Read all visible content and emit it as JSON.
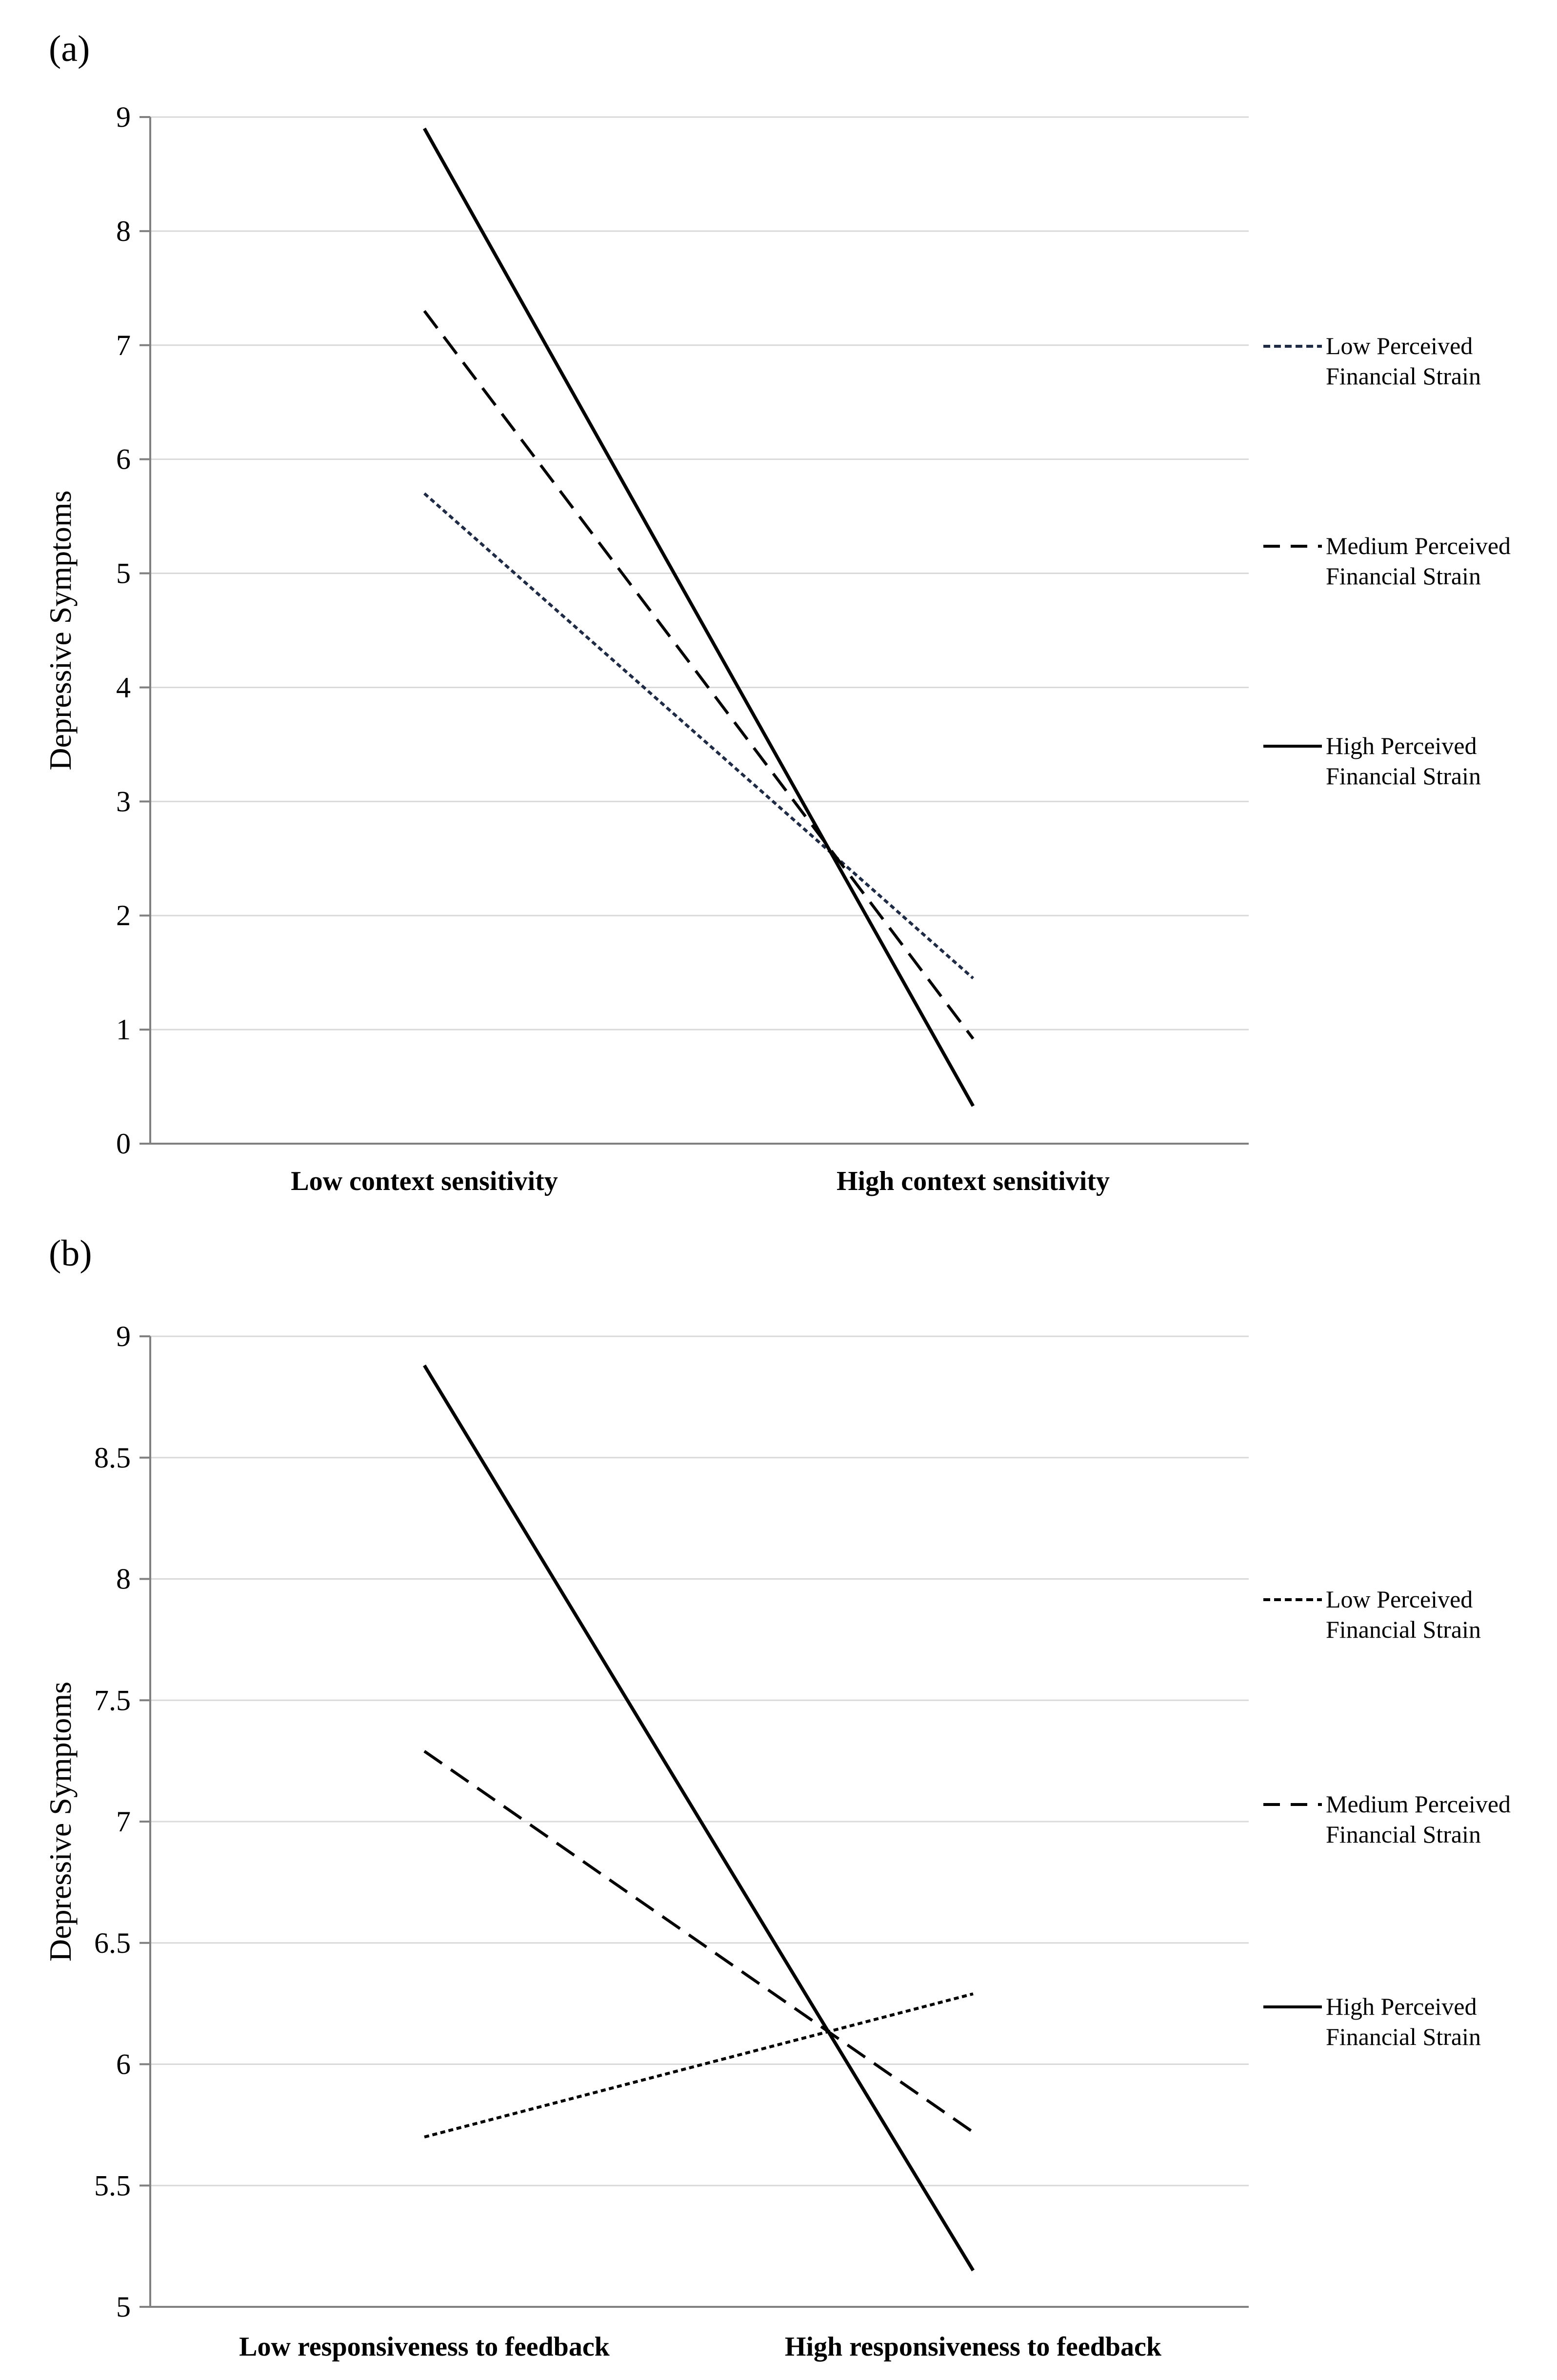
{
  "chart_data": [
    {
      "panel_label": "(a)",
      "type": "line",
      "title": "",
      "ylabel": "Depressive Symptoms",
      "xlabel": "",
      "ylim": [
        0,
        9
      ],
      "yticks": [
        0,
        1,
        2,
        3,
        4,
        5,
        6,
        7,
        8,
        9
      ],
      "ytick_labels": [
        "0",
        "1",
        "2",
        "3",
        "4",
        "5",
        "6",
        "7",
        "8",
        "9"
      ],
      "grid": true,
      "legend_position": "right",
      "categories": [
        "Low context sensitivity",
        "High context sensitivity"
      ],
      "series": [
        {
          "name": "Low Perceived Financial Strain",
          "legend_lines": [
            "Low Perceived",
            "Financial Strain"
          ],
          "style": "dotted",
          "color": "#1f2a44",
          "values": [
            5.7,
            1.45
          ]
        },
        {
          "name": "Medium Perceived Financial Strain",
          "legend_lines": [
            "Medium Perceived",
            "Financial Strain"
          ],
          "style": "dashed",
          "color": "#000000",
          "values": [
            7.3,
            0.92
          ]
        },
        {
          "name": "High Perceived Financial Strain",
          "legend_lines": [
            "High Perceived",
            "Financial Strain"
          ],
          "style": "solid",
          "color": "#000000",
          "values": [
            8.9,
            0.33
          ]
        }
      ]
    },
    {
      "panel_label": "(b)",
      "type": "line",
      "title": "",
      "ylabel": "Depressive Symptoms",
      "xlabel": "",
      "ylim": [
        5,
        9
      ],
      "yticks": [
        5,
        5.5,
        6,
        6.5,
        7,
        7.5,
        8,
        8.5,
        9
      ],
      "ytick_labels": [
        "5",
        "5.5",
        "6",
        "6.5",
        "7",
        "7.5",
        "8",
        "8.5",
        "9"
      ],
      "grid": true,
      "legend_position": "right",
      "categories": [
        "Low responsiveness to feedback",
        "High responsiveness to feedback"
      ],
      "series": [
        {
          "name": "Low Perceived Financial Strain",
          "legend_lines": [
            "Low Perceived",
            "Financial Strain"
          ],
          "style": "dotted",
          "color": "#000000",
          "values": [
            5.7,
            6.29
          ]
        },
        {
          "name": "Medium Perceived Financial Strain",
          "legend_lines": [
            "Medium Perceived",
            "Financial Strain"
          ],
          "style": "dashed",
          "color": "#000000",
          "values": [
            7.29,
            5.72
          ]
        },
        {
          "name": "High Perceived Financial Strain",
          "legend_lines": [
            "High Perceived",
            "Financial Strain"
          ],
          "style": "solid",
          "color": "#000000",
          "values": [
            8.88,
            5.15
          ]
        }
      ]
    }
  ]
}
